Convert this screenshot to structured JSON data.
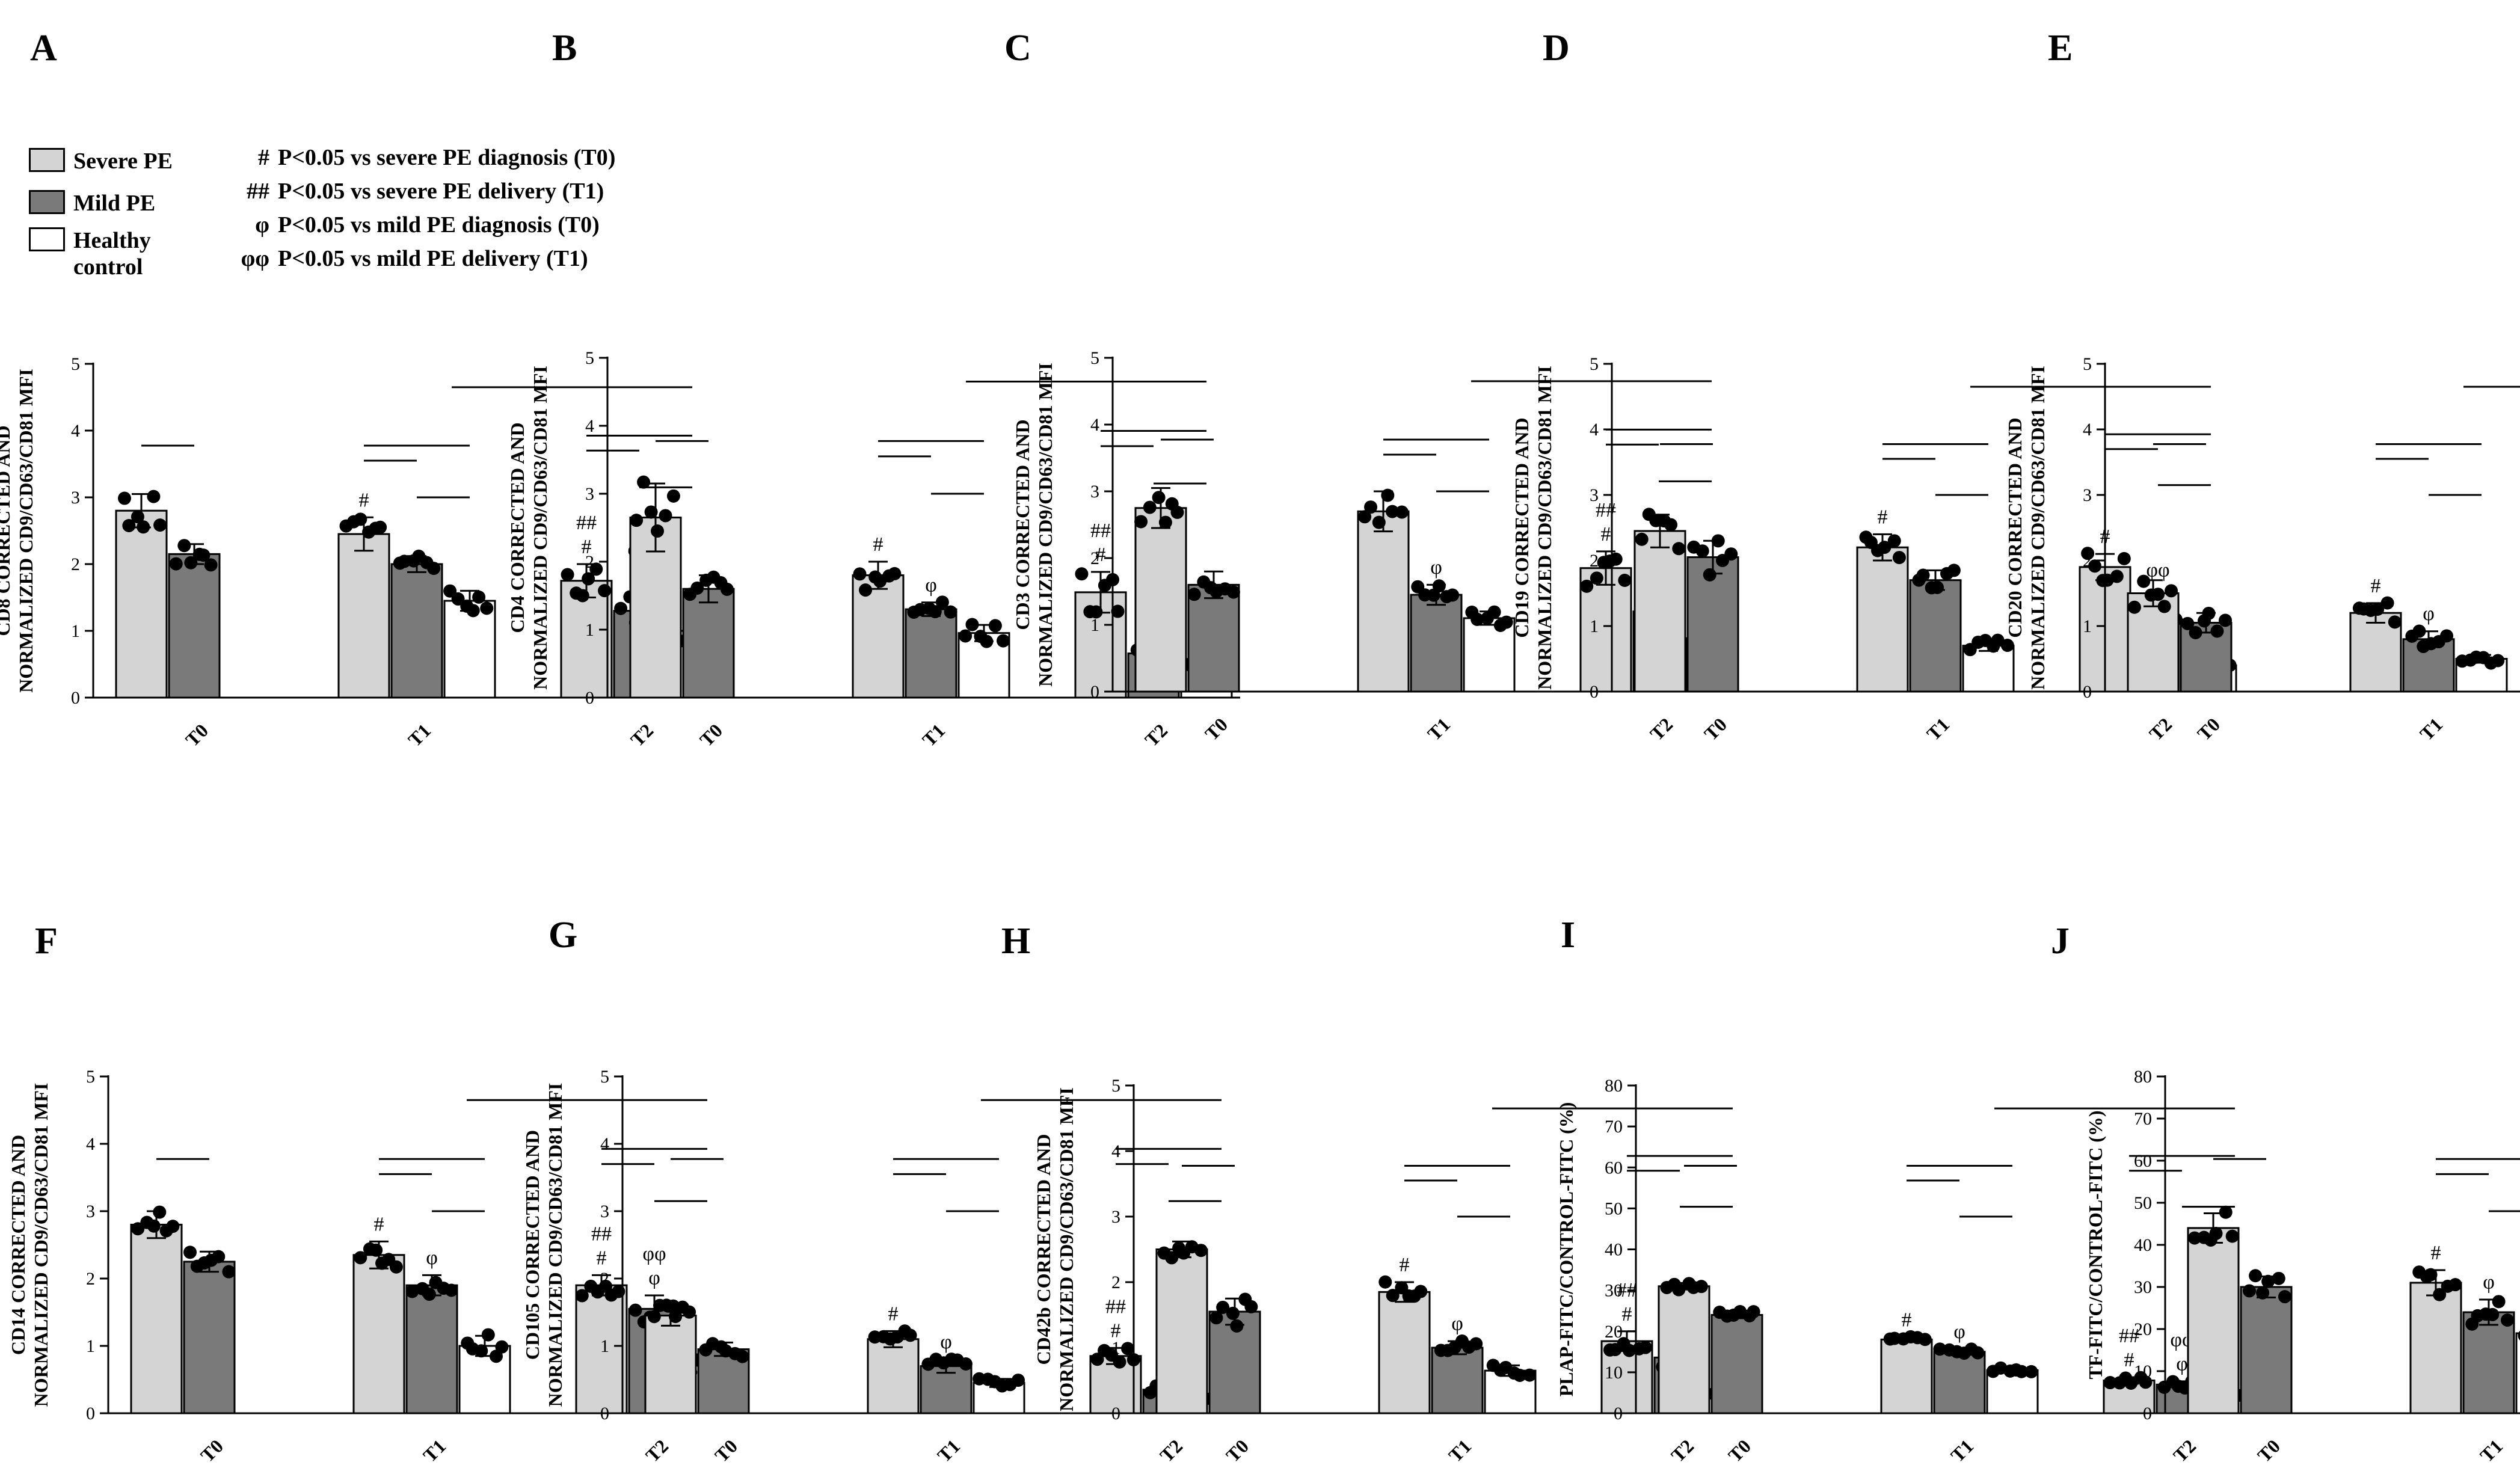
{
  "legend": {
    "groups": [
      {
        "label": "Severe PE",
        "color": "#d4d4d4"
      },
      {
        "label": "Mild PE",
        "color": "#7a7a7a"
      },
      {
        "label": "Healthy control",
        "color": "#ffffff"
      }
    ],
    "notes": [
      {
        "symbol": "#",
        "text": "P<0.05 vs severe PE diagnosis (T0)"
      },
      {
        "symbol": "##",
        "text": "P<0.05 vs severe PE delivery (T1)"
      },
      {
        "symbol": "φ",
        "text": "P<0.05 vs mild PE diagnosis (T0)"
      },
      {
        "symbol": "φφ",
        "text": "P<0.05 vs mild PE delivery (T1)"
      }
    ]
  },
  "chart_data": [
    {
      "panel": "A",
      "type": "bar",
      "title": "",
      "ylabel": "CD8 CORRECTED AND NORMALIZED CD9/CD63/CD81 MFI",
      "ylim": [
        0,
        5
      ],
      "yticks": [
        0,
        1,
        2,
        3,
        4,
        5
      ],
      "categories": [
        "T0",
        "T1",
        "T2"
      ],
      "series": [
        {
          "name": "Severe PE",
          "values": [
            2.8,
            2.45,
            1.75
          ],
          "errors": [
            0.25,
            0.25,
            0.25
          ]
        },
        {
          "name": "Mild PE",
          "values": [
            2.15,
            2.0,
            1.3
          ],
          "errors": [
            0.15,
            0.12,
            0.3
          ]
        },
        {
          "name": "Healthy control",
          "values": [
            null,
            1.45,
            1.0
          ],
          "errors": [
            null,
            0.15,
            0.15
          ]
        }
      ],
      "annotations": [
        {
          "cat": 1,
          "series": 0,
          "text": [
            "#"
          ]
        },
        {
          "cat": 2,
          "series": 0,
          "text": [
            "##",
            "#"
          ]
        },
        {
          "cat": 2,
          "series": 1,
          "text": [
            "φφ",
            "φ"
          ]
        }
      ]
    },
    {
      "panel": "B",
      "type": "bar",
      "title": "",
      "ylabel": "CD4 CORRECTED AND NORMALIZED CD9/CD63/CD81 MFI",
      "ylim": [
        0,
        5
      ],
      "yticks": [
        0,
        1,
        2,
        3,
        4,
        5
      ],
      "categories": [
        "T0",
        "T1",
        "T2"
      ],
      "series": [
        {
          "name": "Severe PE",
          "values": [
            2.65,
            1.8,
            1.55
          ],
          "errors": [
            0.5,
            0.2,
            0.3
          ]
        },
        {
          "name": "Mild PE",
          "values": [
            1.6,
            1.3,
            0.65
          ],
          "errors": [
            0.2,
            0.1,
            0.15
          ]
        },
        {
          "name": "Healthy control",
          "values": [
            null,
            0.95,
            0.45
          ],
          "errors": [
            null,
            0.12,
            0.06
          ]
        }
      ],
      "annotations": [
        {
          "cat": 1,
          "series": 0,
          "text": [
            "#"
          ]
        },
        {
          "cat": 1,
          "series": 1,
          "text": [
            "φ"
          ]
        },
        {
          "cat": 2,
          "series": 0,
          "text": [
            "##",
            "#"
          ]
        },
        {
          "cat": 2,
          "series": 1,
          "text": [
            "φφ",
            "φ"
          ]
        }
      ]
    },
    {
      "panel": "C",
      "type": "bar",
      "title": "",
      "ylabel": "CD3 CORRECTED AND NORMALIZED CD9/CD63/CD81 MFI",
      "ylim": [
        0,
        5
      ],
      "yticks": [
        0,
        1,
        2,
        3,
        4,
        5
      ],
      "categories": [
        "T0",
        "T1",
        "T2"
      ],
      "series": [
        {
          "name": "Severe PE",
          "values": [
            2.75,
            2.7,
            1.85
          ],
          "errors": [
            0.3,
            0.3,
            0.25
          ]
        },
        {
          "name": "Mild PE",
          "values": [
            1.6,
            1.45,
            1.2
          ],
          "errors": [
            0.2,
            0.15,
            0.1
          ]
        },
        {
          "name": "Healthy control",
          "values": [
            null,
            1.1,
            0.8
          ],
          "errors": [
            null,
            0.1,
            0.12
          ]
        }
      ],
      "annotations": [
        {
          "cat": 1,
          "series": 1,
          "text": [
            "φ"
          ]
        },
        {
          "cat": 2,
          "series": 0,
          "text": [
            "##",
            "#"
          ]
        },
        {
          "cat": 2,
          "series": 1,
          "text": [
            "φφ",
            "φ"
          ]
        }
      ]
    },
    {
      "panel": "D",
      "type": "bar",
      "title": "",
      "ylabel": "CD19 CORRECTED AND NORMALIZED CD9/CD63/CD81 MFI",
      "ylim": [
        0,
        5
      ],
      "yticks": [
        0,
        1,
        2,
        3,
        4,
        5
      ],
      "categories": [
        "T0",
        "T1",
        "T2"
      ],
      "series": [
        {
          "name": "Severe PE",
          "values": [
            2.45,
            2.2,
            1.9
          ],
          "errors": [
            0.25,
            0.2,
            0.2
          ]
        },
        {
          "name": "Mild PE",
          "values": [
            2.05,
            1.7,
            1.1
          ],
          "errors": [
            0.25,
            0.15,
            0.12
          ]
        },
        {
          "name": "Healthy control",
          "values": [
            null,
            0.7,
            0.4
          ],
          "errors": [
            null,
            0.08,
            0.06
          ]
        }
      ],
      "annotations": [
        {
          "cat": 1,
          "series": 0,
          "text": [
            "#"
          ]
        },
        {
          "cat": 2,
          "series": 0,
          "text": [
            "#"
          ]
        },
        {
          "cat": 2,
          "series": 1,
          "text": [
            "φφ",
            "φ"
          ]
        }
      ]
    },
    {
      "panel": "E",
      "type": "bar",
      "title": "",
      "ylabel": "CD20 CORRECTED AND NORMALIZED CD9/CD63/CD81 MFI",
      "ylim": [
        0,
        5
      ],
      "yticks": [
        0,
        1,
        2,
        3,
        4,
        5
      ],
      "categories": [
        "T0",
        "T1",
        "T2"
      ],
      "series": [
        {
          "name": "Severe PE",
          "values": [
            1.5,
            1.2,
            0.85
          ],
          "errors": [
            0.2,
            0.15,
            0.1
          ]
        },
        {
          "name": "Mild PE",
          "values": [
            1.05,
            0.8,
            0.55
          ],
          "errors": [
            0.15,
            0.12,
            0.15
          ]
        },
        {
          "name": "Healthy control",
          "values": [
            null,
            0.5,
            0.25
          ],
          "errors": [
            null,
            0.06,
            0.05
          ]
        }
      ],
      "annotations": [
        {
          "cat": 1,
          "series": 0,
          "text": [
            "#"
          ]
        },
        {
          "cat": 1,
          "series": 1,
          "text": [
            "φ"
          ]
        },
        {
          "cat": 2,
          "series": 0,
          "text": [
            "##",
            "#"
          ]
        },
        {
          "cat": 2,
          "series": 1,
          "text": [
            "φφ",
            "φ"
          ]
        }
      ]
    },
    {
      "panel": "F",
      "type": "bar",
      "title": "",
      "ylabel": "CD14 CORRECTED AND NORMALIZED CD9/CD63/CD81 MFI",
      "ylim": [
        0,
        5
      ],
      "yticks": [
        0,
        1,
        2,
        3,
        4,
        5
      ],
      "categories": [
        "T0",
        "T1",
        "T2"
      ],
      "series": [
        {
          "name": "Severe PE",
          "values": [
            2.8,
            2.35,
            1.9
          ],
          "errors": [
            0.2,
            0.2,
            0.15
          ]
        },
        {
          "name": "Mild PE",
          "values": [
            2.25,
            1.9,
            1.55
          ],
          "errors": [
            0.15,
            0.15,
            0.2
          ]
        },
        {
          "name": "Healthy control",
          "values": [
            null,
            1.0,
            0.75
          ],
          "errors": [
            null,
            0.15,
            0.15
          ]
        }
      ],
      "annotations": [
        {
          "cat": 1,
          "series": 0,
          "text": [
            "#"
          ]
        },
        {
          "cat": 1,
          "series": 1,
          "text": [
            "φ"
          ]
        },
        {
          "cat": 2,
          "series": 0,
          "text": [
            "##",
            "#"
          ]
        },
        {
          "cat": 2,
          "series": 1,
          "text": [
            "φφ",
            "φ"
          ]
        }
      ]
    },
    {
      "panel": "G",
      "type": "bar",
      "title": "",
      "ylabel": "CD105 CORRECTED AND NORMALIZED CD9/CD63/CD81 MFI",
      "ylim": [
        0,
        5
      ],
      "yticks": [
        0,
        1,
        2,
        3,
        4,
        5
      ],
      "categories": [
        "T0",
        "T1",
        "T2"
      ],
      "series": [
        {
          "name": "Severe PE",
          "values": [
            1.45,
            1.1,
            0.85
          ],
          "errors": [
            0.15,
            0.12,
            0.12
          ]
        },
        {
          "name": "Mild PE",
          "values": [
            0.95,
            0.7,
            0.35
          ],
          "errors": [
            0.1,
            0.1,
            0.06
          ]
        },
        {
          "name": "Healthy control",
          "values": [
            null,
            0.45,
            0.25
          ],
          "errors": [
            null,
            0.06,
            0.04
          ]
        }
      ],
      "annotations": [
        {
          "cat": 1,
          "series": 0,
          "text": [
            "#"
          ]
        },
        {
          "cat": 1,
          "series": 1,
          "text": [
            "φ"
          ]
        },
        {
          "cat": 2,
          "series": 0,
          "text": [
            "##",
            "#"
          ]
        },
        {
          "cat": 2,
          "series": 1,
          "text": [
            "φφ",
            "φ"
          ]
        }
      ]
    },
    {
      "panel": "H",
      "type": "bar",
      "title": "",
      "ylabel": "CD42b CORRECTED AND NORMALIZED CD9/CD63/CD81 MFI",
      "ylim": [
        0,
        5
      ],
      "yticks": [
        0,
        1,
        2,
        3,
        4,
        5
      ],
      "categories": [
        "T0",
        "T1",
        "T2"
      ],
      "series": [
        {
          "name": "Severe PE",
          "values": [
            2.5,
            1.85,
            1.1
          ],
          "errors": [
            0.12,
            0.15,
            0.15
          ]
        },
        {
          "name": "Mild PE",
          "values": [
            1.55,
            1.0,
            0.85
          ],
          "errors": [
            0.2,
            0.1,
            0.15
          ]
        },
        {
          "name": "Healthy control",
          "values": [
            null,
            0.65,
            0.3
          ],
          "errors": [
            null,
            0.08,
            0.05
          ]
        }
      ],
      "annotations": [
        {
          "cat": 1,
          "series": 0,
          "text": [
            "#"
          ]
        },
        {
          "cat": 1,
          "series": 1,
          "text": [
            "φ"
          ]
        },
        {
          "cat": 2,
          "series": 0,
          "text": [
            "##",
            "#"
          ]
        },
        {
          "cat": 2,
          "series": 1,
          "text": [
            "φ"
          ]
        }
      ]
    },
    {
      "panel": "I",
      "type": "bar",
      "title": "",
      "ylabel": "PLAP-FITC/CONTROL-FITC (%)",
      "ylim": [
        0,
        80
      ],
      "yticks": [
        0,
        10,
        20,
        30,
        40,
        50,
        60,
        70,
        80
      ],
      "categories": [
        "T0",
        "T1",
        "T2"
      ],
      "series": [
        {
          "name": "Severe PE",
          "values": [
            31,
            18,
            8
          ],
          "errors": [
            0.8,
            0.6,
            0.8
          ]
        },
        {
          "name": "Mild PE",
          "values": [
            24,
            15,
            7
          ],
          "errors": [
            0.8,
            0.6,
            0.8
          ]
        },
        {
          "name": "Healthy control",
          "values": [
            null,
            10.5,
            4
          ],
          "errors": [
            null,
            0.5,
            0.6
          ]
        }
      ],
      "annotations": [
        {
          "cat": 1,
          "series": 0,
          "text": [
            "#"
          ]
        },
        {
          "cat": 1,
          "series": 1,
          "text": [
            "φ"
          ]
        },
        {
          "cat": 2,
          "series": 0,
          "text": [
            "##",
            "#"
          ]
        },
        {
          "cat": 2,
          "series": 1,
          "text": [
            "φφ",
            "φ"
          ]
        }
      ]
    },
    {
      "panel": "J",
      "type": "bar",
      "title": "",
      "ylabel": "TF-FITC/CONTROL-FITC (%)",
      "ylim": [
        0,
        80
      ],
      "yticks": [
        0,
        10,
        20,
        30,
        40,
        50,
        60,
        70,
        80
      ],
      "categories": [
        "T0",
        "T1",
        "T2"
      ],
      "series": [
        {
          "name": "Severe PE",
          "values": [
            44,
            31,
            29
          ],
          "errors": [
            3.5,
            3,
            2
          ]
        },
        {
          "name": "Mild PE",
          "values": [
            30,
            24,
            22
          ],
          "errors": [
            2.5,
            3,
            1
          ]
        },
        {
          "name": "Healthy control",
          "values": [
            null,
            19,
            12
          ],
          "errors": [
            null,
            3,
            1
          ]
        }
      ],
      "annotations": [
        {
          "cat": 1,
          "series": 0,
          "text": [
            "#"
          ]
        },
        {
          "cat": 1,
          "series": 1,
          "text": [
            "φ"
          ]
        },
        {
          "cat": 2,
          "series": 0,
          "text": [
            "#"
          ]
        },
        {
          "cat": 2,
          "series": 1,
          "text": [
            "φφ",
            "φ"
          ]
        }
      ]
    }
  ]
}
